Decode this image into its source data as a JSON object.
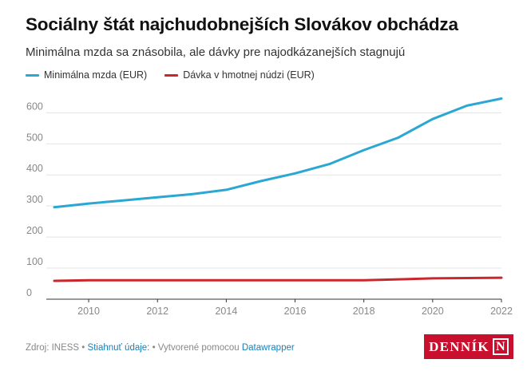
{
  "header": {
    "title": "Sociálny štát najchudobnejších Slovákov obchádza",
    "subtitle": "Minimálna mzda sa znásobila, ale dávky pre najodkázanejších stagnujú"
  },
  "chart_data": {
    "type": "line",
    "x": [
      2009,
      2010,
      2011,
      2012,
      2013,
      2014,
      2015,
      2016,
      2017,
      2018,
      2019,
      2020,
      2021,
      2022
    ],
    "series": [
      {
        "name": "Minimálna mzda (EUR)",
        "color": "#2aa7d2",
        "values": [
          296,
          308,
          318,
          328,
          338,
          352,
          380,
          405,
          435,
          480,
          520,
          580,
          623,
          646
        ]
      },
      {
        "name": "Dávka v hmotnej núdzi (EUR)",
        "color": "#c8282d",
        "values": [
          59,
          61,
          61,
          61,
          61,
          61,
          61,
          61,
          61,
          61,
          64,
          67,
          68,
          69
        ]
      }
    ],
    "x_ticks": [
      "2010",
      "2012",
      "2014",
      "2016",
      "2018",
      "2020",
      "2022"
    ],
    "y_ticks": [
      "0",
      "100",
      "200",
      "300",
      "400",
      "500",
      "600"
    ],
    "xlim": [
      2009,
      2022
    ],
    "ylim": [
      0,
      660
    ],
    "grid": true,
    "legend_position": "top-left"
  },
  "footer": {
    "source_text": "Zdroj: INESS",
    "separator1": " • ",
    "download_link": "Stiahnuť údaje:",
    "separator2": " • Vytvorené pomocou ",
    "tool_link": "Datawrapper"
  },
  "logo": {
    "text": "DENNÍK",
    "mark": "N",
    "color": "#c8102e"
  }
}
